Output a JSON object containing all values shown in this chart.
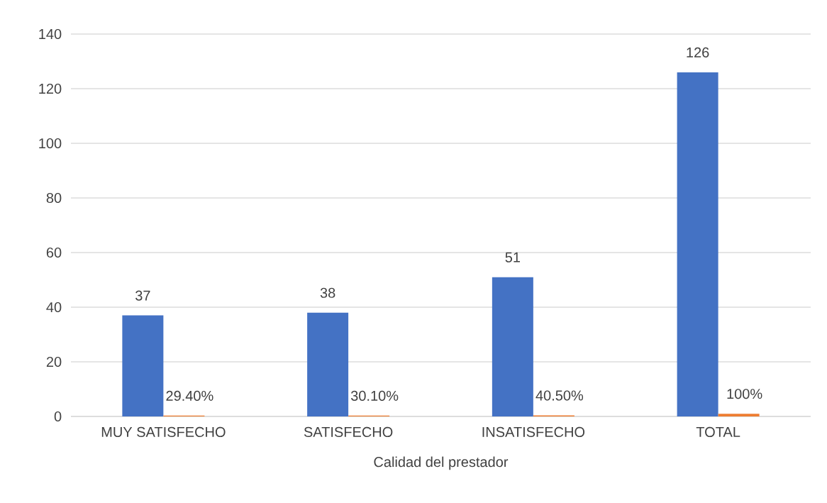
{
  "chart_data": {
    "type": "bar",
    "xlabel": "Calidad del prestador",
    "categories": [
      "MUY SATISFECHO",
      "SATISFECHO",
      "INSATISFECHO",
      "TOTAL"
    ],
    "series": [
      {
        "color": "#4472c4",
        "values": [
          37,
          38,
          51,
          126
        ],
        "value_labels": [
          "37",
          "38",
          "51",
          "126"
        ]
      },
      {
        "color": "#ed7d31",
        "values": [
          0.294,
          0.301,
          0.405,
          1
        ],
        "value_labels": [
          "29.40%",
          "30.10%",
          "40.50%",
          "100%"
        ]
      }
    ],
    "ylim": [
      0,
      140
    ],
    "yticks": [
      0,
      20,
      40,
      60,
      80,
      100,
      120,
      140
    ],
    "grid": "y"
  }
}
